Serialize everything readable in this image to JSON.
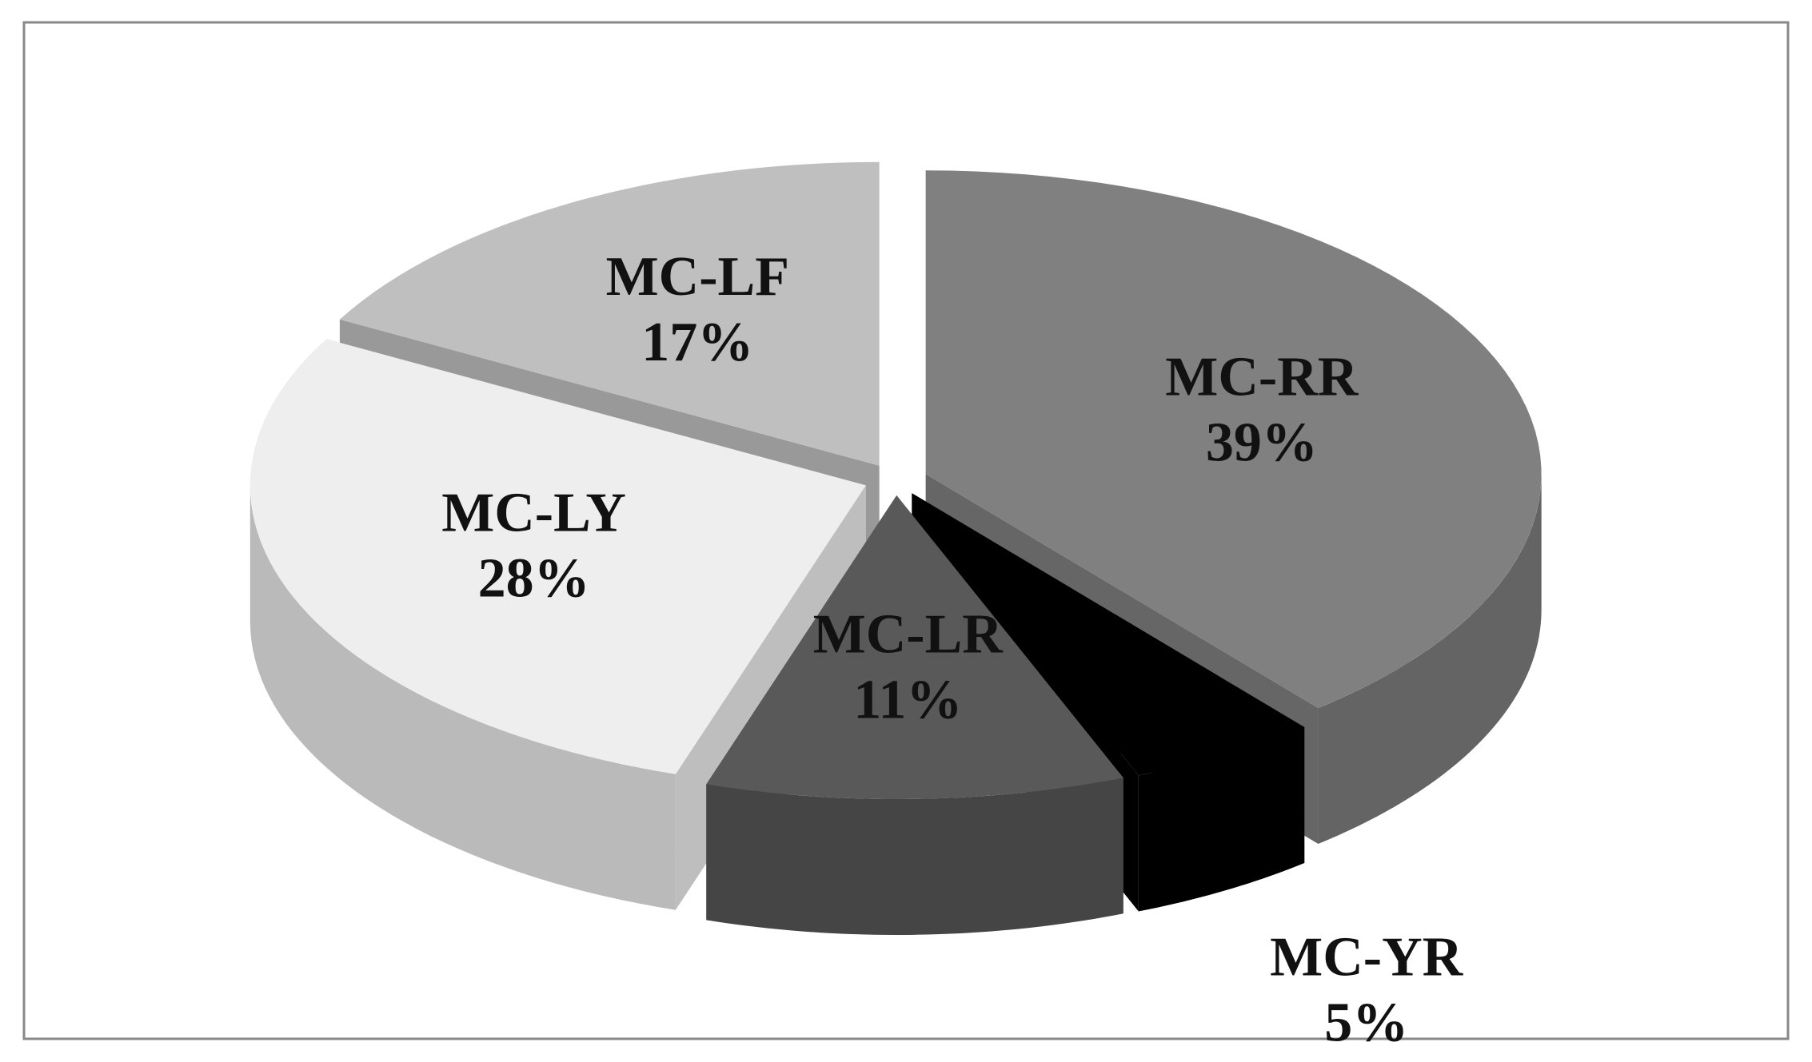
{
  "chart_data": {
    "type": "pie",
    "categories": [
      "MC-RR",
      "MC-YR",
      "MC-LR",
      "MC-LY",
      "MC-LF"
    ],
    "values": [
      39,
      5,
      11,
      28,
      17
    ],
    "value_labels": [
      "39%",
      "5%",
      "11%",
      "28%",
      "17%"
    ],
    "colors": [
      "#808080",
      "#000000",
      "#595959",
      "#eeeeee",
      "#bfbfbf"
    ]
  }
}
